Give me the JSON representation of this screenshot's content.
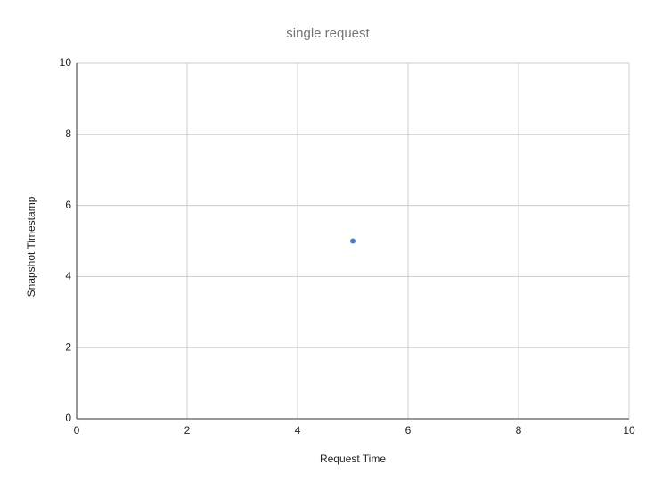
{
  "chart_data": {
    "type": "scatter",
    "title": "single request",
    "x_label": "Request Time",
    "y_label": "Snapshot Timestamp",
    "x": [
      5
    ],
    "values": [
      5
    ],
    "color": "#4a7fdb",
    "xlim": [
      0,
      10
    ],
    "xticks": [
      0,
      2,
      4,
      6,
      8,
      10
    ],
    "ylim": [
      0,
      10
    ],
    "yticks": [
      0,
      2,
      4,
      6,
      8,
      10
    ],
    "grid": true
  }
}
